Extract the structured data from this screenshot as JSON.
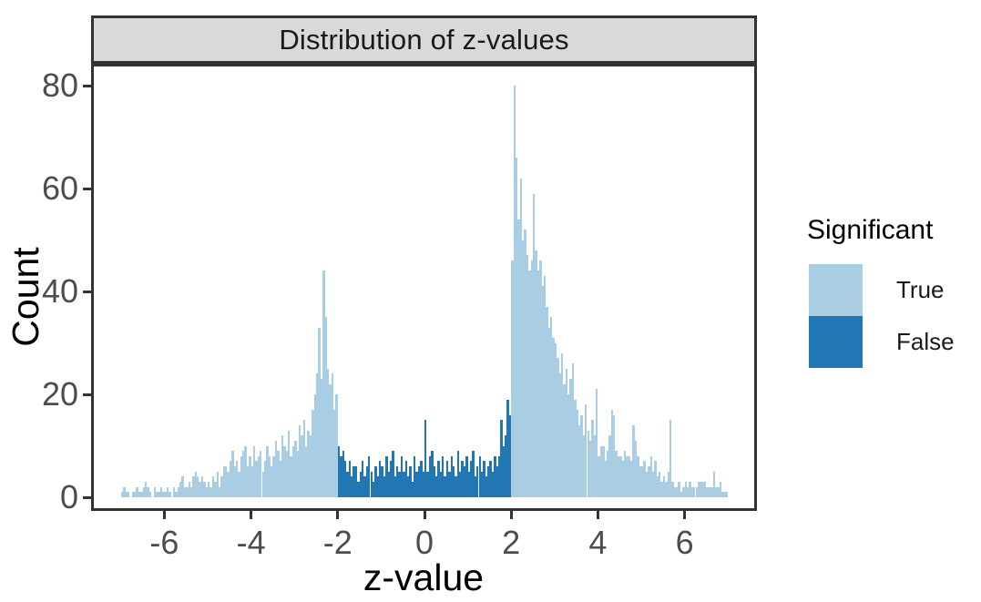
{
  "chart": {
    "title": "Distribution of z-values",
    "xlabel": "z-value",
    "ylabel": "Count",
    "legend": {
      "title": "Significant",
      "items": [
        {
          "label": "True",
          "color": "#a9cee3"
        },
        {
          "label": "False",
          "color": "#2176b4"
        }
      ]
    },
    "colors": {
      "significant_true": "#a9cee3",
      "significant_false": "#2176b4",
      "strip_background": "#d9d9d9",
      "panel_border": "#333333",
      "axis_text": "#4d4d4d"
    }
  },
  "chart_data": {
    "type": "bar",
    "subtype": "histogram",
    "title": "Distribution of z-values",
    "xlabel": "z-value",
    "ylabel": "Count",
    "legend_title": "Significant",
    "legend_entries": [
      "True",
      "False"
    ],
    "x_ticks": [
      -6,
      -4,
      -2,
      0,
      2,
      4,
      6
    ],
    "y_ticks": [
      0,
      20,
      40,
      60,
      80
    ],
    "xlim": [
      -7.65,
      7.65
    ],
    "ylim": [
      0,
      83
    ],
    "grid": false,
    "legend_position": "right",
    "bin_start": -7.0,
    "bin_width": 0.05,
    "significance_threshold": 2,
    "series_rule": "bars with |z| > 2 colored 'True' (light blue), bars with |z| < 2 colored 'False' (dark blue)",
    "counts": [
      1,
      2,
      1,
      1,
      0,
      1,
      1,
      2,
      1,
      1,
      2,
      3,
      2,
      1,
      0,
      2,
      1,
      1,
      2,
      1,
      1,
      2,
      1,
      0,
      2,
      1,
      2,
      3,
      4,
      2,
      2,
      3,
      2,
      4,
      5,
      4,
      3,
      4,
      3,
      2,
      3,
      2,
      4,
      3,
      5,
      2,
      4,
      6,
      6,
      5,
      7,
      9,
      6,
      7,
      5,
      8,
      9,
      10,
      6,
      8,
      6,
      10,
      7,
      8,
      9,
      5,
      7,
      10,
      8,
      6,
      8,
      11,
      9,
      7,
      12,
      10,
      9,
      13,
      8,
      10,
      11,
      9,
      14,
      12,
      15,
      10,
      13,
      12,
      17,
      20,
      24,
      33,
      23,
      44,
      35,
      25,
      22,
      24,
      17,
      20,
      10,
      8,
      9,
      7,
      5,
      7,
      4,
      6,
      6,
      3,
      5,
      7,
      4,
      6,
      8,
      5,
      3,
      6,
      4,
      7,
      6,
      4,
      8,
      5,
      7,
      9,
      4,
      6,
      5,
      8,
      5,
      7,
      4,
      6,
      3,
      8,
      5,
      6,
      7,
      5,
      15,
      5,
      8,
      9,
      6,
      4,
      7,
      5,
      8,
      4,
      7,
      5,
      8,
      6,
      4,
      9,
      5,
      7,
      6,
      8,
      5,
      7,
      9,
      4,
      6,
      8,
      5,
      7,
      4,
      6,
      7,
      5,
      8,
      6,
      8,
      15,
      10,
      12,
      19,
      16,
      46,
      80,
      66,
      54,
      62,
      50,
      52,
      47,
      44,
      46,
      59,
      48,
      44,
      46,
      41,
      43,
      37,
      33,
      35,
      31,
      30,
      27,
      24,
      28,
      22,
      25,
      20,
      23,
      26,
      19,
      17,
      14,
      16,
      12,
      18,
      13,
      11,
      15,
      12,
      21,
      8,
      10,
      10,
      7,
      9,
      12,
      17,
      16,
      9,
      8,
      8,
      7,
      9,
      8,
      8,
      7,
      14,
      11,
      8,
      6,
      6,
      7,
      5,
      6,
      8,
      5,
      7,
      4,
      5,
      3,
      4,
      3,
      5,
      15,
      3,
      2,
      2,
      3,
      1,
      2,
      3,
      2,
      3,
      2,
      2,
      2,
      3,
      3,
      3,
      3,
      2,
      2,
      2,
      5,
      2,
      2,
      3,
      1,
      1,
      1
    ]
  }
}
